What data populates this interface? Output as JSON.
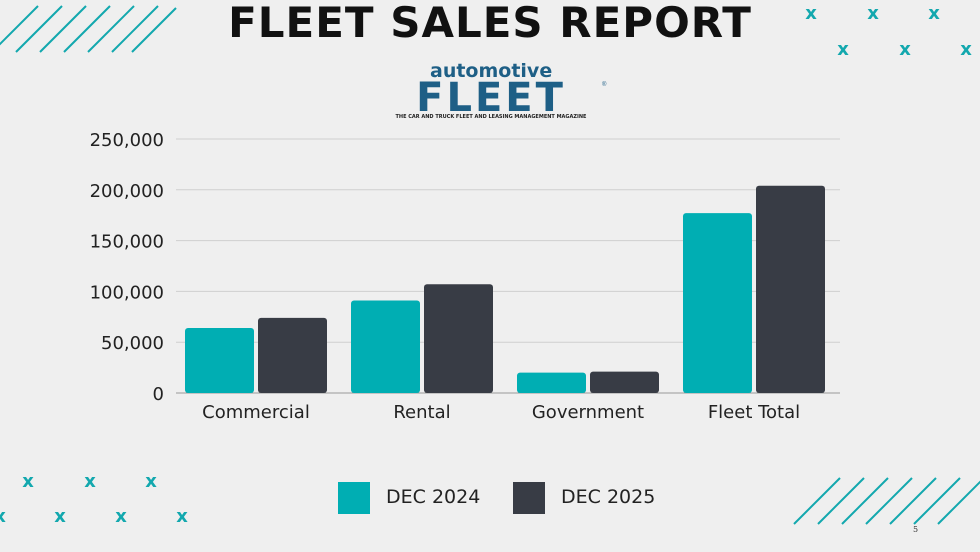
{
  "header": {
    "title": "FLEET SALES REPORT"
  },
  "logo": {
    "word_top": "automotive",
    "word_main": "FLEET",
    "registered": "®",
    "tagline": "THE CAR AND TRUCK FLEET AND LEASING MANAGEMENT MAGAZINE"
  },
  "decorations": {
    "marker_glyph": "x",
    "accent_color": "#13a8ae"
  },
  "chart_data": {
    "type": "bar",
    "title": "",
    "xlabel": "",
    "ylabel": "",
    "categories": [
      "Commercial",
      "Rental",
      "Government",
      "Fleet Total"
    ],
    "series": [
      {
        "name": "DEC 2024",
        "color": "#00aeb3",
        "values": [
          64000,
          91000,
          20000,
          177000
        ]
      },
      {
        "name": "DEC 2025",
        "color": "#383c45",
        "values": [
          74000,
          107000,
          21000,
          204000
        ]
      }
    ],
    "ylim": [
      0,
      250000
    ],
    "yticks": [
      0,
      50000,
      100000,
      150000,
      200000,
      250000
    ],
    "ytick_labels": [
      "0",
      "50,000",
      "100,000",
      "150,000",
      "200,000",
      "250,000"
    ],
    "grid": true,
    "legend_position": "bottom"
  },
  "footer": {
    "page_number": "5"
  }
}
